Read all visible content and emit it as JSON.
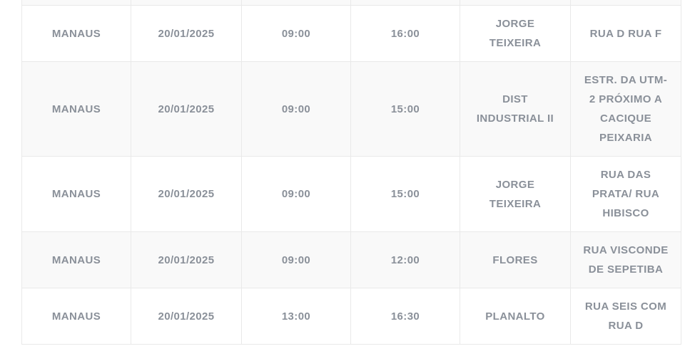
{
  "table": {
    "rows": [
      {
        "city": "MANAUS",
        "date": "20/01/2025",
        "start_time": "09:00",
        "end_time": "16:00",
        "district": "JORGE TEIXEIRA",
        "address": "RUA D RUA F"
      },
      {
        "city": "MANAUS",
        "date": "20/01/2025",
        "start_time": "09:00",
        "end_time": "15:00",
        "district": "DIST\nINDUSTRIAL II",
        "address": "ESTR. DA UTM-\n2 PRÓXIMO A\nCACIQUE\nPEIXARIA"
      },
      {
        "city": "MANAUS",
        "date": "20/01/2025",
        "start_time": "09:00",
        "end_time": "15:00",
        "district": "JORGE TEIXEIRA",
        "address": "RUA DAS\nPRATA/ RUA\nHIBISCO"
      },
      {
        "city": "MANAUS",
        "date": "20/01/2025",
        "start_time": "09:00",
        "end_time": "12:00",
        "district": "FLORES",
        "address": "RUA VISCONDE\nDE SEPETIBA"
      },
      {
        "city": "MANAUS",
        "date": "20/01/2025",
        "start_time": "13:00",
        "end_time": "16:30",
        "district": "PLANALTO",
        "address": "RUA SEIS COM\nRUA D"
      }
    ],
    "colors": {
      "text": "#8a9099",
      "border": "#e9e9e9",
      "stripe": "#f9f9f9",
      "background": "#ffffff"
    }
  }
}
